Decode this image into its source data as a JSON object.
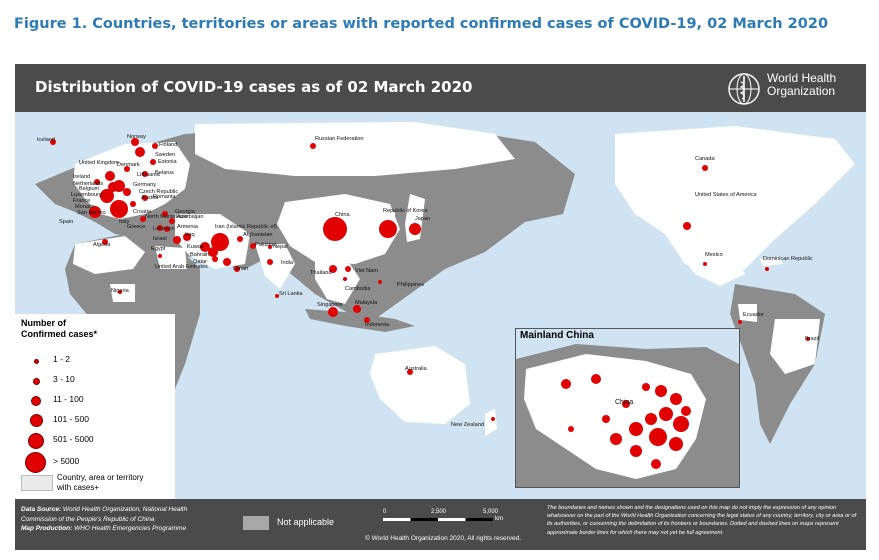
{
  "figure_title": "Figure 1. Countries, territories or areas with reported confirmed cases of COVID-19, 02 March 2020",
  "header": {
    "title": "Distribution of COVID-19  cases as of 02 March 2020",
    "org_name_line1": "World Health",
    "org_name_line2": "Organization"
  },
  "legend": {
    "title_line1": "Number of",
    "title_line2": "Confirmed cases*",
    "classes": [
      "1 - 2",
      "3 - 10",
      "11 - 100",
      "101 - 500",
      "501 - 5000",
      "> 5000"
    ],
    "country_label_line1": "Country, area or territory",
    "country_label_line2": "with cases+"
  },
  "inset": {
    "title": "Mainland China",
    "china_label": "China"
  },
  "footer": {
    "data_source_label": "Data Source:",
    "data_source_text": "World Health Organization, National Health Commission of the People's Republic of China",
    "map_production_label": "Map Production:",
    "map_production_text": "WHO Health Emergencies Programme",
    "not_applicable": "Not applicable",
    "scale_0": "0",
    "scale_1": "2,500",
    "scale_2": "5,000",
    "scale_unit": "km",
    "copyright": "© World Health Organization  2020,  All rights reserved.",
    "disclaimer": "The boundaries and names shown and the designations used on this map do not imply the expression of any opinion whatsoever on the part of the World Health Organization concerning the legal status of any country, territory, city or area or of its authorities, or concerning the delimitation of its frontiers or boundaries. Dotted and dashed lines on maps represent approximate border lines for which there may not yet be full agreement."
  },
  "colors": {
    "ocean": "#cfe3f2",
    "land": "#8c8c8c",
    "affected": "#ffffff",
    "dot": "#e00000",
    "bar": "#4b4b4b",
    "title_blue": "#2d7bb6"
  },
  "country_labels": [
    "Iceland",
    "Norway",
    "Finland",
    "Sweden",
    "Estonia",
    "Denmark",
    "Lithuania",
    "Belarus",
    "United Kingdom",
    "Ireland",
    "Netherlands",
    "Belgium",
    "Luxembourg",
    "France",
    "Monaco",
    "San Marino",
    "Germany",
    "Czech Republic",
    "Austria",
    "Romania",
    "Croatia",
    "Georgia",
    "North Macedonia",
    "Azerbaijan",
    "Spain",
    "Italy",
    "Greece",
    "Lebanon",
    "Armenia",
    "Israel",
    "Iraq",
    "Kuwait",
    "Bahrain",
    "Qatar",
    "United Arab Emirates",
    "Oman",
    "Algeria",
    "Egypt",
    "Iran (Islamic Republic of)",
    "Afghanistan",
    "Pakistan",
    "Nepal",
    "India",
    "Sri Lanka",
    "Nigeria",
    "Russian Federation",
    "China",
    "Republic of Korea",
    "Japan",
    "Thailand",
    "Viet Nam",
    "Cambodia",
    "Philippines",
    "Singapore",
    "Malaysia",
    "Indonesia",
    "Australia",
    "New Zealand",
    "Canada",
    "United States of America",
    "Mexico",
    "Dominican Republic",
    "Ecuador",
    "Brazil"
  ]
}
